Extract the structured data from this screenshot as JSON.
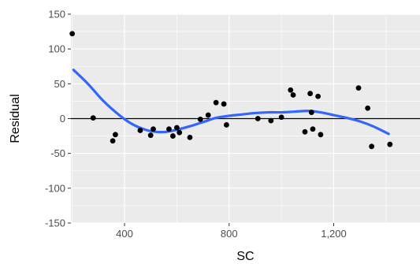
{
  "chart_data": {
    "type": "scatter",
    "title": "",
    "xlabel": "SC",
    "ylabel": "Residual",
    "xlim": [
      195,
      1530
    ],
    "ylim": [
      -150,
      150
    ],
    "x_ticks": [
      400,
      800,
      1200
    ],
    "x_tick_labels": [
      "400",
      "800",
      "1,200"
    ],
    "y_ticks": [
      -150,
      -100,
      -50,
      0,
      50,
      100,
      150
    ],
    "y_tick_labels": [
      "-150",
      "-100",
      "-50",
      "0",
      "50",
      "100",
      "150"
    ],
    "reference_line_y": 0,
    "grid": true,
    "legend": "none",
    "colors": {
      "panel_background": "#ebebeb",
      "grid_major": "#ffffff",
      "points": "#000000",
      "smooth_line": "#3366ff",
      "reference_line": "#000000"
    },
    "series": [
      {
        "kind": "points",
        "x": [
          200,
          280,
          355,
          365,
          460,
          500,
          510,
          570,
          585,
          600,
          610,
          650,
          690,
          720,
          750,
          780,
          790,
          910,
          960,
          1000,
          1035,
          1045,
          1090,
          1110,
          1115,
          1120,
          1140,
          1150,
          1295,
          1330,
          1345,
          1415
        ],
        "y": [
          122,
          1,
          -32,
          -23,
          -17,
          -24,
          -15,
          -15,
          -25,
          -13,
          -20,
          -27,
          -1,
          5,
          23,
          21,
          -9,
          0,
          -3,
          2,
          41,
          34,
          -19,
          36,
          9,
          -15,
          32,
          -23,
          44,
          15,
          -40,
          -37
        ]
      },
      {
        "kind": "smooth",
        "x": [
          205,
          260,
          320,
          380,
          430,
          480,
          520,
          560,
          600,
          650,
          700,
          750,
          800,
          850,
          900,
          950,
          1000,
          1050,
          1100,
          1150,
          1200,
          1250,
          1300,
          1350,
          1410
        ],
        "y": [
          70,
          50,
          25,
          5,
          -8,
          -16,
          -19,
          -19,
          -16,
          -11,
          -5,
          1,
          4,
          6,
          8,
          9,
          9,
          10,
          11,
          9,
          5,
          1,
          -4,
          -11,
          -22
        ]
      }
    ]
  }
}
